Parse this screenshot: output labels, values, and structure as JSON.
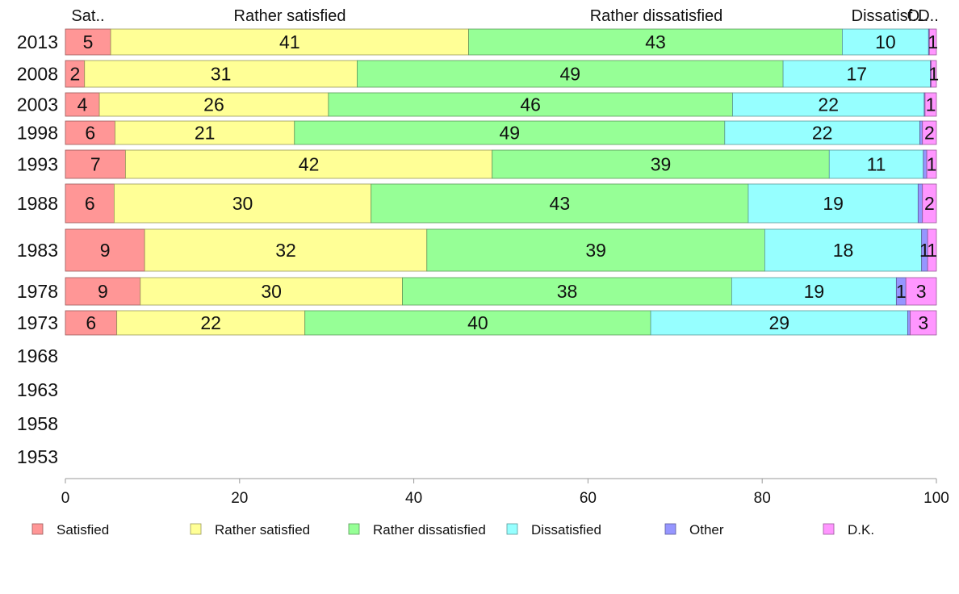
{
  "chart_data": {
    "type": "bar",
    "orientation": "horizontal",
    "stacked": true,
    "title": "",
    "xlabel": "",
    "ylabel": "",
    "xlim": [
      0,
      100
    ],
    "x_ticks": [
      "0",
      "20",
      "40",
      "60",
      "80",
      "100"
    ],
    "grid": false,
    "legend_position": "bottom",
    "top_labels": [
      "Sat..",
      "Rather satisfied",
      "Rather dissatisfied",
      "Dissatisf..",
      "O..",
      "D.."
    ],
    "categories": [
      "2013",
      "2008",
      "2003",
      "1998",
      "1993",
      "1988",
      "1983",
      "1978",
      "1973",
      "1968",
      "1963",
      "1958",
      "1953"
    ],
    "series": [
      {
        "name": "Satisfied",
        "color": "#ff9696",
        "values": [
          5.2,
          2.2,
          3.9,
          5.7,
          6.9,
          5.6,
          9.1,
          8.6,
          5.9,
          null,
          null,
          null,
          null
        ],
        "labels": [
          "5",
          "2",
          "4",
          "6",
          "7",
          "6",
          "9",
          "9",
          "6",
          "",
          "",
          "",
          ""
        ]
      },
      {
        "name": "Rather satisfied",
        "color": "#ffff96",
        "values": [
          41.1,
          31.3,
          26.3,
          20.6,
          42.1,
          29.5,
          32.4,
          30.1,
          21.6,
          null,
          null,
          null,
          null
        ],
        "labels": [
          "41",
          "31",
          "26",
          "21",
          "42",
          "30",
          "32",
          "30",
          "22",
          "",
          "",
          "",
          ""
        ]
      },
      {
        "name": "Rather dissatisfied",
        "color": "#96ff96",
        "values": [
          42.9,
          48.9,
          46.4,
          49.4,
          38.7,
          43.3,
          38.8,
          37.8,
          39.7,
          null,
          null,
          null,
          null
        ],
        "labels": [
          "43",
          "49",
          "46",
          "49",
          "39",
          "43",
          "39",
          "38",
          "40",
          "",
          "",
          "",
          ""
        ]
      },
      {
        "name": "Dissatisfied",
        "color": "#96ffff",
        "values": [
          9.9,
          16.9,
          22.0,
          22.4,
          10.8,
          19.5,
          18.0,
          18.9,
          29.5,
          null,
          null,
          null,
          null
        ],
        "labels": [
          "10",
          "17",
          "22",
          "22",
          "11",
          "19",
          "18",
          "19",
          "29",
          "",
          "",
          "",
          ""
        ]
      },
      {
        "name": "Other",
        "color": "#9696ff",
        "values": [
          0.1,
          0.1,
          0.1,
          0.3,
          0.4,
          0.5,
          0.7,
          1.1,
          0.3,
          null,
          null,
          null,
          null
        ],
        "labels": [
          "",
          "",
          "",
          "",
          "",
          "",
          "1",
          "1",
          "",
          "",
          "",
          "",
          ""
        ]
      },
      {
        "name": "D.K.",
        "color": "#ff96ff",
        "values": [
          0.8,
          0.6,
          1.3,
          1.6,
          1.1,
          1.6,
          1.0,
          3.5,
          3.0,
          null,
          null,
          null,
          null
        ],
        "labels": [
          "1",
          "1",
          "1",
          "2",
          "1",
          "2",
          "1",
          "3",
          "3",
          "",
          "",
          "",
          ""
        ]
      }
    ]
  }
}
